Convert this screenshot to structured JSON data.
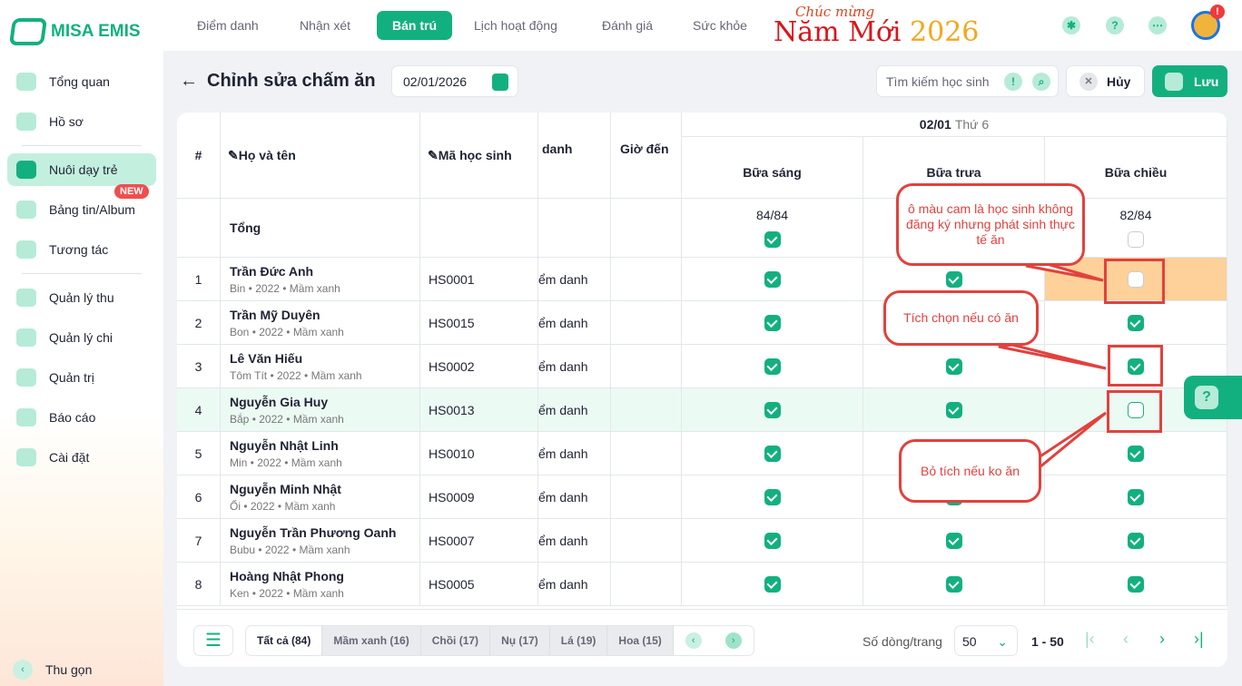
{
  "app": {
    "logo": "MISA EMIS",
    "banner_small": "Chúc mừng",
    "banner_main": "Năm Mới",
    "banner_year": "2026"
  },
  "topnav": {
    "tabs": [
      "Điểm danh",
      "Nhận xét",
      "Bán trú",
      "Lịch hoạt động",
      "Đánh giá",
      "Sức khỏe"
    ],
    "active": "Bán trú",
    "avatar_badge": "!"
  },
  "sidebar": {
    "items": [
      "Tổng quan",
      "Hồ sơ",
      "Nuôi dạy trẻ",
      "Bảng tin/Album",
      "Tương tác",
      "Quản lý thu",
      "Quản lý chi",
      "Quản trị",
      "Báo cáo",
      "Cài đặt"
    ],
    "active": "Nuôi dạy trẻ",
    "new_badge": "NEW",
    "collapse": "Thu gọn"
  },
  "page": {
    "title": "Chỉnh sửa chấm ăn",
    "date": "02/01/2026",
    "search_placeholder": "Tìm kiếm học sinh",
    "cancel": "Hủy",
    "save": "Lưu"
  },
  "table": {
    "headers": {
      "index": "#",
      "name": "Họ và tên",
      "code": "Mã học sinh",
      "status": "danh",
      "arrival": "Giờ đến",
      "date": "02/01",
      "weekday": "Thứ 6",
      "meals": [
        "Bữa sáng",
        "Bữa trưa",
        "Bữa chiều"
      ]
    },
    "total": {
      "label": "Tổng",
      "breakfast": "84/84",
      "breakfast_checked": true,
      "lunch": "",
      "dinner": "82/84",
      "dinner_checked": false
    },
    "rows": [
      {
        "no": "1",
        "name": "Trần Đức Anh",
        "nick": "Bin",
        "year": "2022",
        "class": "Mầm xanh",
        "code": "HS0001",
        "status": "ểm danh",
        "meals": [
          true,
          true,
          false
        ],
        "highlight": "orange"
      },
      {
        "no": "2",
        "name": "Trần Mỹ Duyên",
        "nick": "Bon",
        "year": "2022",
        "class": "Mầm xanh",
        "code": "HS0015",
        "status": "ểm danh",
        "meals": [
          true,
          true,
          true
        ]
      },
      {
        "no": "3",
        "name": "Lê Văn Hiếu",
        "nick": "Tôm Tít",
        "year": "2022",
        "class": "Mầm xanh",
        "code": "HS0002",
        "status": "ểm danh",
        "meals": [
          true,
          true,
          true
        ]
      },
      {
        "no": "4",
        "name": "Nguyễn Gia Huy",
        "nick": "Bắp",
        "year": "2022",
        "class": "Mầm xanh",
        "code": "HS0013",
        "status": "ểm danh",
        "meals": [
          true,
          true,
          false
        ],
        "highlight": "green"
      },
      {
        "no": "5",
        "name": "Nguyễn Nhật Linh",
        "nick": "Min",
        "year": "2022",
        "class": "Mầm xanh",
        "code": "HS0010",
        "status": "ểm danh",
        "meals": [
          true,
          true,
          true
        ]
      },
      {
        "no": "6",
        "name": "Nguyễn Minh Nhật",
        "nick": "Ối",
        "year": "2022",
        "class": "Mầm xanh",
        "code": "HS0009",
        "status": "ểm danh",
        "meals": [
          true,
          true,
          true
        ]
      },
      {
        "no": "7",
        "name": "Nguyễn Trần Phương Oanh",
        "nick": "Bubu",
        "year": "2022",
        "class": "Mầm xanh",
        "code": "HS0007",
        "status": "ểm danh",
        "meals": [
          true,
          true,
          true
        ]
      },
      {
        "no": "8",
        "name": "Hoàng Nhật Phong",
        "nick": "Ken",
        "year": "2022",
        "class": "Mầm xanh",
        "code": "HS0005",
        "status": "ểm danh",
        "meals": [
          true,
          true,
          true
        ]
      }
    ]
  },
  "footer": {
    "class_tabs": [
      "Tất cả  (84)",
      "Mầm xanh  (16)",
      "Chồi  (17)",
      "Nụ  (17)",
      "Lá  (19)",
      "Hoa  (15)"
    ],
    "rows_label": "Số dòng/trang",
    "rows_value": "50",
    "range": "1 - 50"
  },
  "annotations": [
    "ô màu cam là học sinh không đăng ký nhưng phát sinh thực tế ăn",
    "Tích chọn nếu có ăn",
    "Bỏ tích nếu ko ăn"
  ],
  "colors": {
    "accent": "#13b07f",
    "highlight_orange": "#fdd199",
    "highlight_green": "#ecfaf4",
    "annotation": "#e2413d"
  }
}
